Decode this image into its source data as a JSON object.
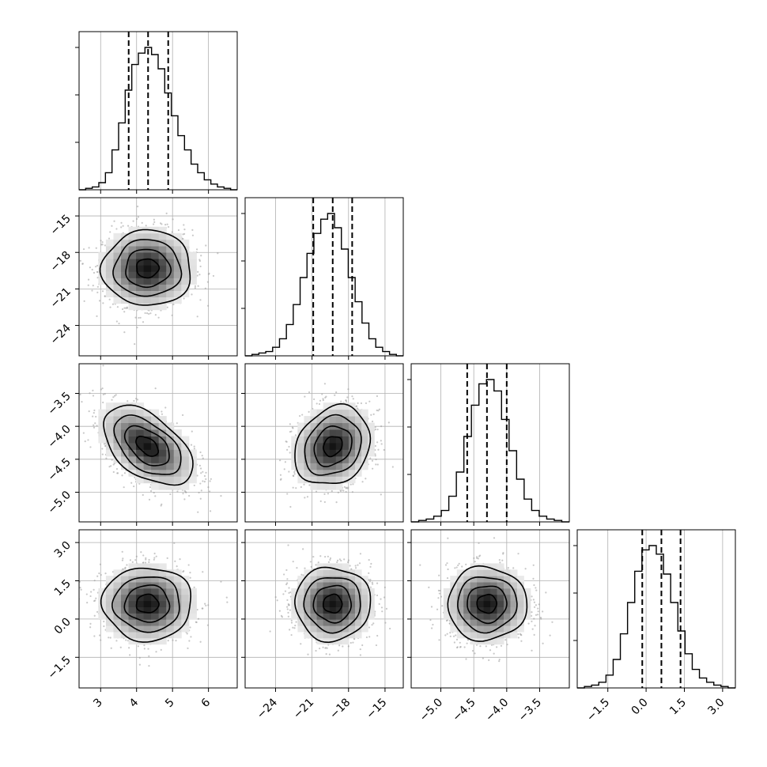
{
  "chart_data": {
    "type": "corner",
    "title": "",
    "grid": true,
    "dims": [
      {
        "range": [
          2.4,
          6.8
        ],
        "mean": 4.3,
        "std": 0.62,
        "quantiles": [
          3.78,
          4.32,
          4.88
        ],
        "ticks": [
          3,
          4,
          5,
          6
        ],
        "tick_labels": [
          "3",
          "4",
          "5",
          "6"
        ],
        "hist": [
          0,
          1,
          2,
          5,
          12,
          28,
          47,
          70,
          88,
          96,
          100,
          95,
          85,
          68,
          52,
          38,
          28,
          18,
          12,
          7,
          4,
          2,
          1,
          0
        ]
      },
      {
        "range": [
          -26.5,
          -13.5
        ],
        "mean": -19.3,
        "std": 1.55,
        "quantiles": [
          -20.9,
          -19.3,
          -17.7
        ],
        "ticks": [
          -24,
          -21,
          -18,
          -15
        ],
        "tick_labels": [
          "−24",
          "−21",
          "−18",
          "−15"
        ],
        "hist": [
          0,
          1,
          2,
          3,
          6,
          12,
          22,
          36,
          55,
          72,
          86,
          96,
          100,
          90,
          75,
          55,
          38,
          23,
          12,
          6,
          3,
          1,
          0
        ]
      },
      {
        "range": [
          -5.45,
          -3.05
        ],
        "mean": -4.3,
        "std": 0.3,
        "quantiles": [
          -4.6,
          -4.3,
          -4.0
        ],
        "ticks": [
          -5.0,
          -4.5,
          -4.0,
          -3.5
        ],
        "tick_labels": [
          "−5.0",
          "−4.5",
          "−4.0",
          "−3.5"
        ],
        "hist": [
          0,
          1,
          2,
          4,
          8,
          18,
          35,
          60,
          82,
          97,
          100,
          92,
          72,
          50,
          30,
          16,
          8,
          4,
          2,
          1,
          0
        ]
      },
      {
        "range": [
          -2.7,
          3.5
        ],
        "mean": 0.6,
        "std": 0.72,
        "quantiles": [
          -0.15,
          0.6,
          1.35
        ],
        "ticks": [
          -1.5,
          0.0,
          1.5,
          3.0
        ],
        "tick_labels": [
          "−1.5",
          "0.0",
          "1.5",
          "3.0"
        ],
        "hist": [
          0,
          1,
          2,
          4,
          9,
          20,
          38,
          60,
          82,
          97,
          100,
          94,
          80,
          60,
          40,
          24,
          13,
          7,
          4,
          2,
          1,
          0
        ]
      }
    ],
    "correlations": {
      "1-0": 0.0,
      "2-0": -0.5,
      "2-1": 0.2,
      "3-0": 0.0,
      "3-1": 0.0,
      "3-2": 0.0
    },
    "contour_levels": [
      0.5,
      1.0,
      1.5,
      2.0
    ]
  }
}
